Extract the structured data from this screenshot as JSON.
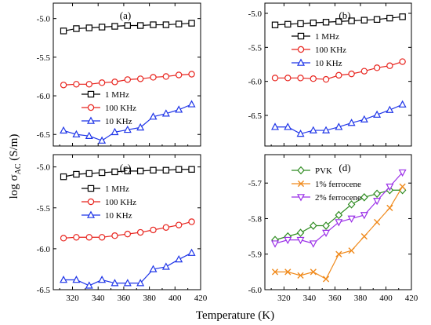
{
  "figure": {
    "xlabel": "Temperature (K)",
    "ylabel": "log σ",
    "ylabel_sub": "AC",
    "ylabel_unit": " (S/m)"
  },
  "chart_data": [
    {
      "type": "line",
      "panel_label": "(a)",
      "xlim": [
        305,
        420
      ],
      "ylim": [
        -6.65,
        -4.8
      ],
      "xticks": [
        320,
        340,
        360,
        380,
        400,
        420
      ],
      "yticks": [
        -5.0,
        -5.5,
        -6.0,
        -6.5
      ],
      "show_xtick_labels": false,
      "legend_position": "lower-left",
      "x": [
        313,
        323,
        333,
        343,
        353,
        363,
        373,
        383,
        393,
        403,
        413
      ],
      "series": [
        {
          "name": "1 MHz",
          "color": "#000000",
          "marker": "square",
          "values": [
            -5.16,
            -5.13,
            -5.12,
            -5.11,
            -5.1,
            -5.09,
            -5.09,
            -5.08,
            -5.08,
            -5.07,
            -5.06
          ]
        },
        {
          "name": "100 KHz",
          "color": "#e8251f",
          "marker": "circle",
          "values": [
            -5.86,
            -5.85,
            -5.85,
            -5.83,
            -5.82,
            -5.79,
            -5.78,
            -5.76,
            -5.75,
            -5.73,
            -5.72
          ]
        },
        {
          "name": "10 KHz",
          "color": "#1f35e8",
          "marker": "triangle",
          "values": [
            -6.45,
            -6.5,
            -6.52,
            -6.58,
            -6.47,
            -6.44,
            -6.41,
            -6.27,
            -6.23,
            -6.18,
            -6.11
          ]
        }
      ]
    },
    {
      "type": "line",
      "panel_label": "(b)",
      "xlim": [
        305,
        420
      ],
      "ylim": [
        -6.95,
        -4.85
      ],
      "xticks": [
        320,
        340,
        360,
        380,
        400,
        420
      ],
      "yticks": [
        -5.0,
        -5.5,
        -6.0,
        -6.5
      ],
      "show_xtick_labels": false,
      "legend_position": "upper-left",
      "x": [
        313,
        323,
        333,
        343,
        353,
        363,
        373,
        383,
        393,
        403,
        413
      ],
      "series": [
        {
          "name": "1 MHz",
          "color": "#000000",
          "marker": "square",
          "values": [
            -5.17,
            -5.16,
            -5.15,
            -5.14,
            -5.13,
            -5.12,
            -5.11,
            -5.1,
            -5.09,
            -5.07,
            -5.05
          ]
        },
        {
          "name": "100 KHz",
          "color": "#e8251f",
          "marker": "circle",
          "values": [
            -5.95,
            -5.95,
            -5.95,
            -5.96,
            -5.97,
            -5.91,
            -5.89,
            -5.85,
            -5.8,
            -5.77,
            -5.71
          ]
        },
        {
          "name": "10 KHz",
          "color": "#1f35e8",
          "marker": "triangle",
          "values": [
            -6.67,
            -6.67,
            -6.77,
            -6.72,
            -6.72,
            -6.67,
            -6.61,
            -6.56,
            -6.49,
            -6.42,
            -6.34
          ]
        }
      ]
    },
    {
      "type": "line",
      "panel_label": "(c)",
      "xlim": [
        305,
        420
      ],
      "ylim": [
        -6.5,
        -4.85
      ],
      "xticks": [
        320,
        340,
        360,
        380,
        400,
        420
      ],
      "yticks": [
        -5.0,
        -5.5,
        -6.0,
        -6.5
      ],
      "show_xtick_labels": true,
      "legend_position": "left",
      "x": [
        313,
        323,
        333,
        343,
        353,
        363,
        373,
        383,
        393,
        403,
        413
      ],
      "series": [
        {
          "name": "1 MHz",
          "color": "#000000",
          "marker": "square",
          "values": [
            -5.12,
            -5.09,
            -5.08,
            -5.07,
            -5.06,
            -5.05,
            -5.05,
            -5.04,
            -5.04,
            -5.03,
            -5.03
          ]
        },
        {
          "name": "100 KHz",
          "color": "#e8251f",
          "marker": "circle",
          "values": [
            -5.87,
            -5.86,
            -5.86,
            -5.86,
            -5.84,
            -5.82,
            -5.8,
            -5.77,
            -5.74,
            -5.71,
            -5.67
          ]
        },
        {
          "name": "10 KHz",
          "color": "#1f35e8",
          "marker": "triangle",
          "values": [
            -6.38,
            -6.38,
            -6.45,
            -6.38,
            -6.42,
            -6.42,
            -6.42,
            -6.25,
            -6.22,
            -6.13,
            -6.05
          ]
        }
      ]
    },
    {
      "type": "line",
      "panel_label": "(d)",
      "xlim": [
        305,
        420
      ],
      "ylim": [
        -6.0,
        -5.62
      ],
      "xticks": [
        320,
        340,
        360,
        380,
        400,
        420
      ],
      "yticks": [
        -5.7,
        -5.8,
        -5.9,
        -6.0
      ],
      "show_xtick_labels": true,
      "legend_position": "upper-left",
      "x": [
        313,
        323,
        333,
        343,
        353,
        363,
        373,
        383,
        393,
        403,
        413
      ],
      "series": [
        {
          "name": "PVK",
          "color": "#2e8b20",
          "marker": "diamond",
          "values": [
            -5.86,
            -5.85,
            -5.84,
            -5.82,
            -5.82,
            -5.79,
            -5.76,
            -5.74,
            -5.73,
            -5.72,
            -5.72
          ]
        },
        {
          "name": "1% ferrocene",
          "color": "#f08a1c",
          "marker": "cross",
          "values": [
            -5.95,
            -5.95,
            -5.96,
            -5.95,
            -5.97,
            -5.9,
            -5.89,
            -5.85,
            -5.81,
            -5.77,
            -5.71
          ]
        },
        {
          "name": "2% ferrocene",
          "color": "#9b30e8",
          "marker": "triangle-down",
          "values": [
            -5.87,
            -5.86,
            -5.86,
            -5.87,
            -5.84,
            -5.81,
            -5.8,
            -5.79,
            -5.75,
            -5.71,
            -5.67
          ]
        }
      ]
    }
  ]
}
